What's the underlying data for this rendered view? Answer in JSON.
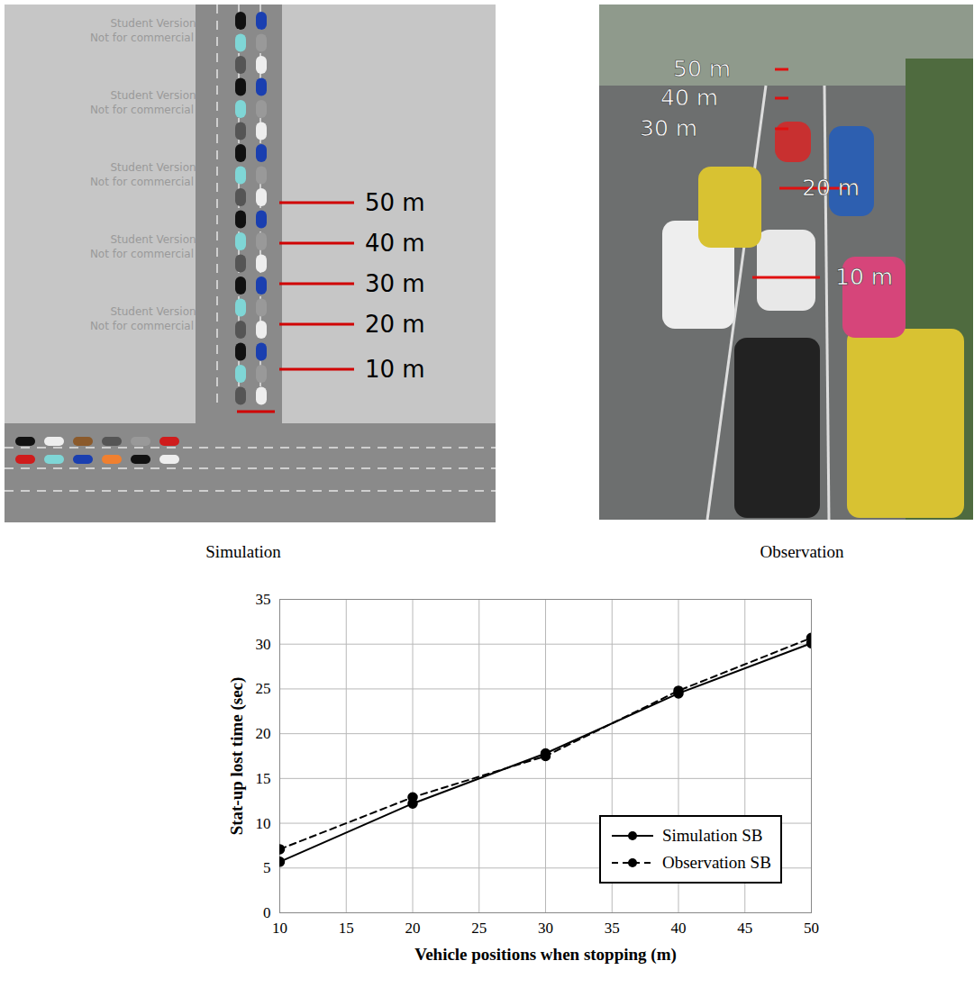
{
  "figure": {
    "panels": [
      {
        "caption": "Simulation",
        "watermark": [
          "Student Version",
          "Not for commercial use"
        ],
        "markers": [
          "50 m",
          "40 m",
          "30 m",
          "20 m",
          "10 m"
        ]
      },
      {
        "caption": "Observation",
        "markers": [
          "50 m",
          "40 m",
          "30 m",
          "20 m",
          "10 m"
        ]
      }
    ]
  },
  "chart_data": {
    "type": "line",
    "xlabel": "Vehicle positions when stopping (m)",
    "ylabel": "Stat-up lost time (sec)",
    "x": [
      10,
      20,
      30,
      40,
      50
    ],
    "series": [
      {
        "name": "Simulation SB",
        "color": "#000000",
        "line_style": "solid",
        "marker": "circle",
        "values": [
          5.7,
          12.2,
          17.8,
          24.5,
          30.1
        ]
      },
      {
        "name": "Observation SB",
        "color": "#000000",
        "line_style": "dashed",
        "marker": "circle",
        "values": [
          7.1,
          12.9,
          17.5,
          24.8,
          30.7
        ]
      }
    ],
    "xlim": [
      10,
      50
    ],
    "ylim": [
      0,
      35
    ],
    "xticks": [
      10,
      15,
      20,
      25,
      30,
      35,
      40,
      45,
      50
    ],
    "yticks": [
      0,
      5,
      10,
      15,
      20,
      25,
      30,
      35
    ],
    "grid": true,
    "legend": "lower right"
  }
}
